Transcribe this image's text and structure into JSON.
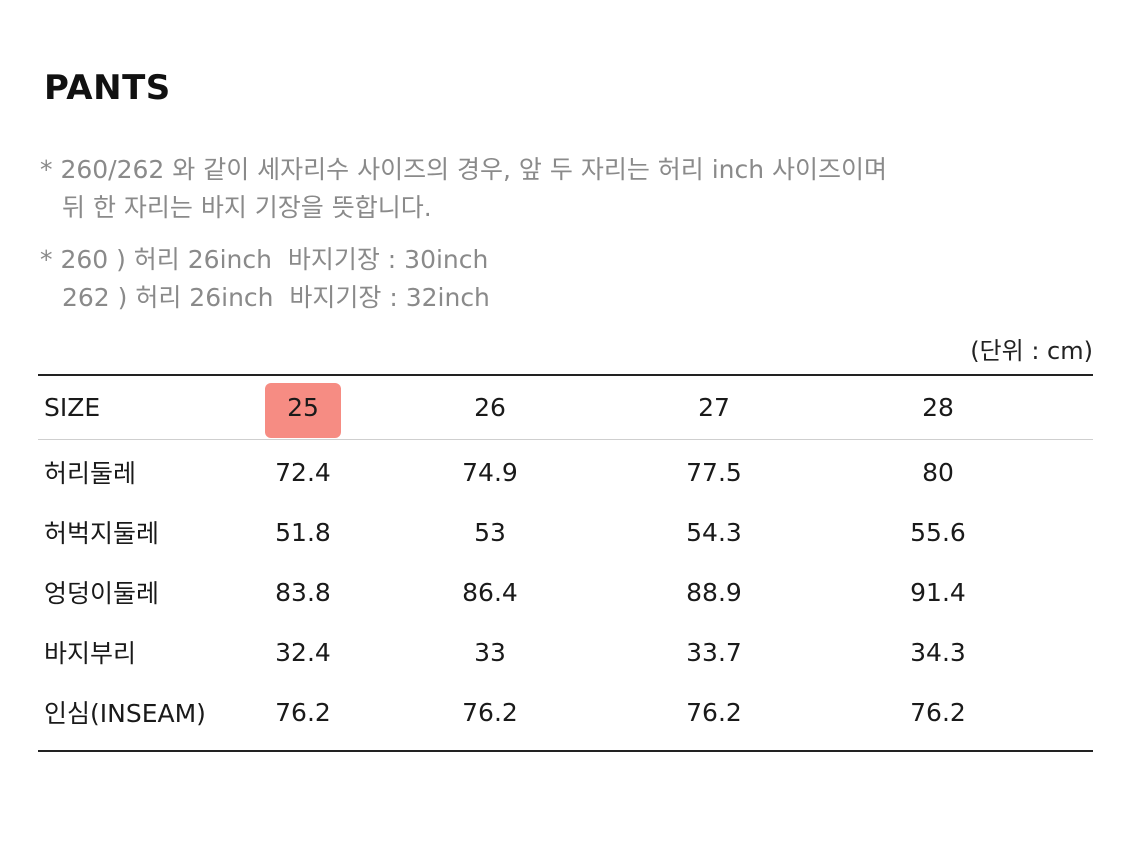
{
  "title": "PANTS",
  "notes": [
    {
      "line1": "* 260/262 와 같이 세자리수 사이즈의 경우, 앞 두 자리는 허리 inch 사이즈이며",
      "line2": "뒤 한 자리는 바지 기장을 뜻합니다."
    },
    {
      "line1": "* 260 ) 허리 26inch  바지기장 : 30inch",
      "line2": "262 ) 허리 26inch  바지기장 : 32inch"
    }
  ],
  "unit": "(단위 : cm)",
  "table": {
    "header": {
      "label": "SIZE",
      "sizes": [
        "25",
        "26",
        "27",
        "28"
      ],
      "highlighted_index": 0,
      "highlight_color": "#f4786d"
    },
    "rows": [
      {
        "label": "허리둘레",
        "values": [
          "72.4",
          "74.9",
          "77.5",
          "80"
        ]
      },
      {
        "label": "허벅지둘레",
        "values": [
          "51.8",
          "53",
          "54.3",
          "55.6"
        ]
      },
      {
        "label": "엉덩이둘레",
        "values": [
          "83.8",
          "86.4",
          "88.9",
          "91.4"
        ]
      },
      {
        "label": "바지부리",
        "values": [
          "32.4",
          "33",
          "33.7",
          "34.3"
        ]
      },
      {
        "label": "인심(INSEAM)",
        "values": [
          "76.2",
          "76.2",
          "76.2",
          "76.2"
        ]
      }
    ]
  }
}
